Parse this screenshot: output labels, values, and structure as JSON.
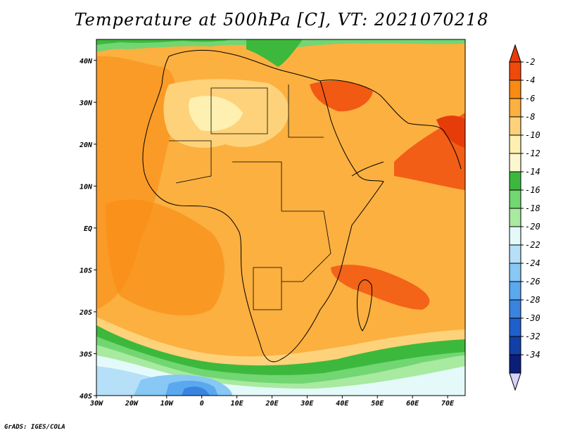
{
  "title": "Temperature at 500hPa [C], VT: 2021070218",
  "credit": "GrADS: IGES/COLA",
  "map": {
    "lat_ticks": [
      "40N",
      "30N",
      "20N",
      "10N",
      "EQ",
      "10S",
      "20S",
      "30S",
      "40S"
    ],
    "lon_ticks": [
      "30W",
      "20W",
      "10W",
      "0",
      "10E",
      "20E",
      "30E",
      "40E",
      "50E",
      "60E",
      "70E"
    ]
  },
  "colorbar": {
    "labels": [
      "-2",
      "-4",
      "-6",
      "-8",
      "-10",
      "-12",
      "-14",
      "-16",
      "-18",
      "-20",
      "-22",
      "-24",
      "-26",
      "-28",
      "-30",
      "-32",
      "-34"
    ],
    "colors": [
      "#f04a0b",
      "#f98a12",
      "#fbb040",
      "#fdd27a",
      "#fef0b0",
      "#fdf7d0",
      "#3cb93c",
      "#72d672",
      "#a8eaa0",
      "#e4fafa",
      "#b5e0f8",
      "#87c8f4",
      "#5aa8ee",
      "#3a84e0",
      "#2060cc",
      "#1040a8",
      "#0a1e7a"
    ],
    "top_arrow_color": "#e63c0a",
    "bottom_arrow_color": "#d8d2f8"
  }
}
